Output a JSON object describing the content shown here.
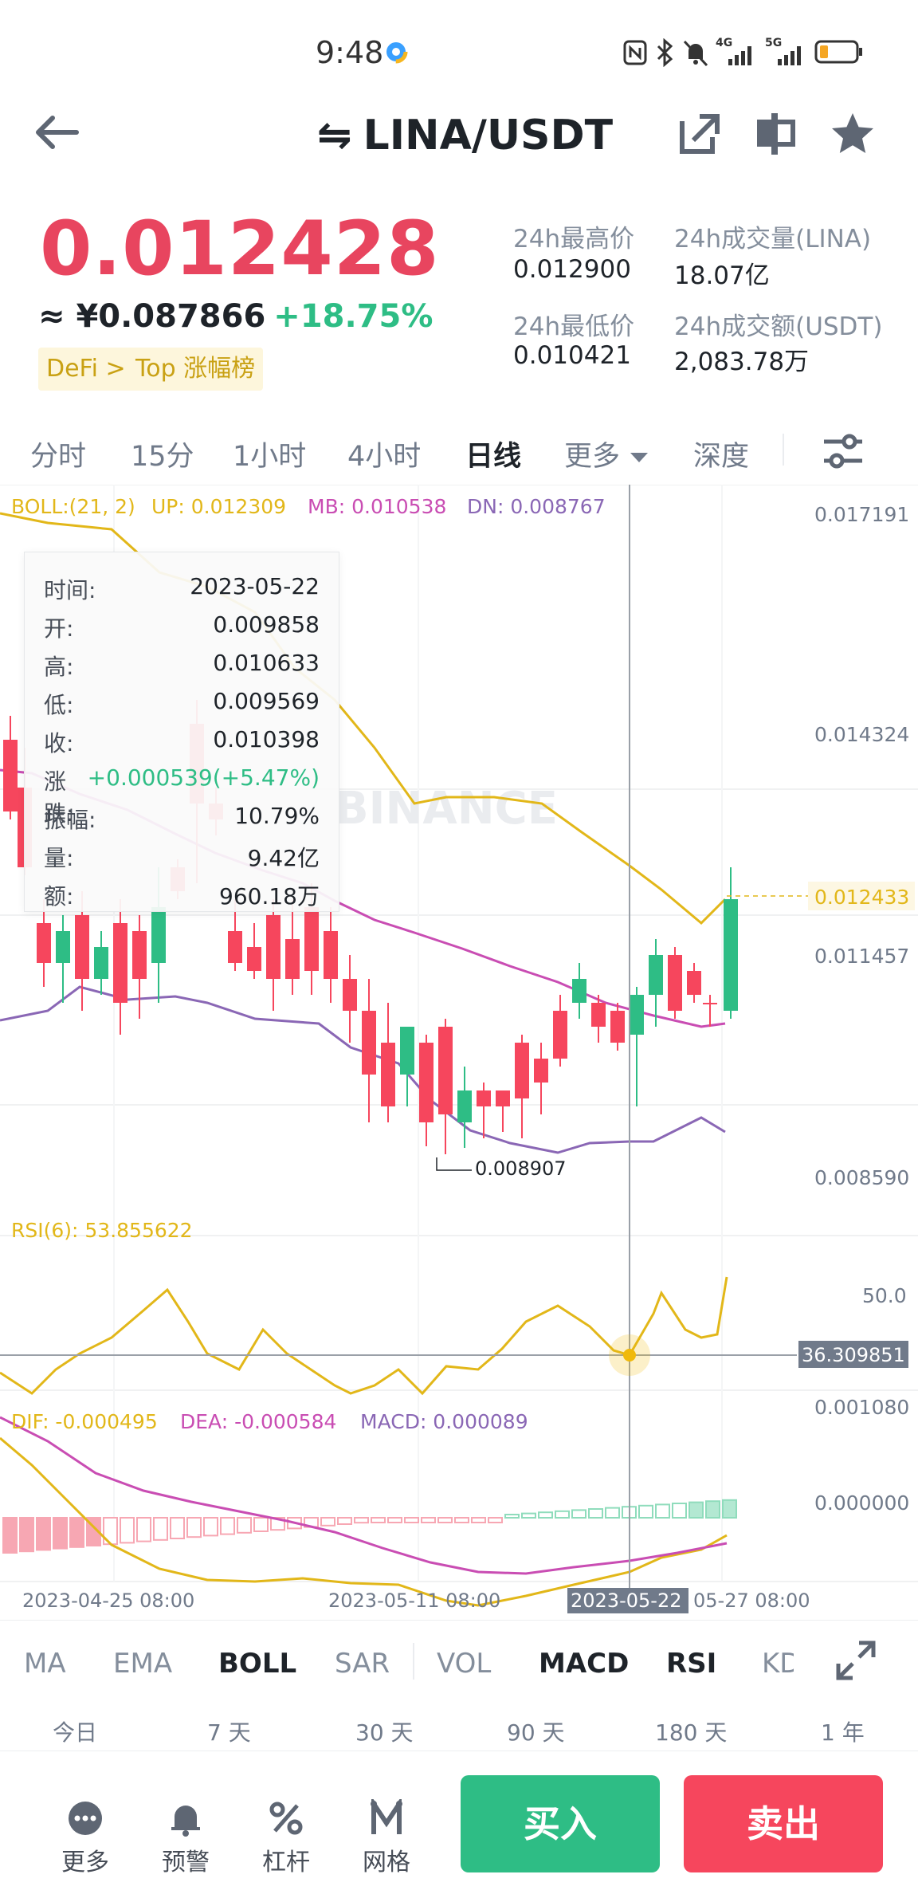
{
  "status_bar": {
    "time": "9:48",
    "icons": [
      "nfc-icon",
      "bluetooth-icon",
      "mute-icon",
      "signal-4g-icon",
      "signal-5g-icon",
      "battery-low-icon"
    ],
    "signal_4g": "4G",
    "signal_5g": "5G"
  },
  "header": {
    "pair": "LINA/USDT",
    "swap_glyph": "⇋"
  },
  "price": {
    "last": "0.012428",
    "cny": "≈ ¥0.087866",
    "change_pct": "+18.75%",
    "tags": [
      "DeFi >",
      "Top 涨幅榜"
    ]
  },
  "stats": {
    "high_label": "24h最高价",
    "high_value": "0.012900",
    "vol_label": "24h成交量(LINA)",
    "vol_value": "18.07亿",
    "low_label": "24h最低价",
    "low_value": "0.010421",
    "amount_label": "24h成交额(USDT)",
    "amount_value": "2,083.78万"
  },
  "intervals": [
    "分时",
    "15分",
    "1小时",
    "4小时",
    "日线",
    "更多",
    "深度"
  ],
  "active_interval": "日线",
  "boll_legend": {
    "name": "BOLL:(21, 2)",
    "up": "UP: 0.012309",
    "mb": "MB: 0.010538",
    "dn": "DN: 0.008767"
  },
  "price_axis": [
    "0.017191",
    "0.014324",
    "0.011457",
    "0.008590"
  ],
  "current_price_label": "0.012433",
  "low_marker": "0.008907",
  "watermark": "BINANCE",
  "rsi": {
    "legend": "RSI(6): 53.855622",
    "axis_label": "50.0",
    "crosshair_value": "36.309851"
  },
  "macd": {
    "dif": "DIF: -0.000495",
    "dea": "DEA: -0.000584",
    "macd": "MACD: 0.000089",
    "axis_top": "0.001080",
    "axis_zero": "0.000000"
  },
  "time_axis": {
    "t1": "2023-04-25 08:00",
    "t2": "2023-05-11 08:00",
    "t3_highlight": "2023-05-22",
    "t4": "05-27 08:00"
  },
  "tooltip": [
    {
      "label": "时间:",
      "value": "2023-05-22"
    },
    {
      "label": "开:",
      "value": "0.009858"
    },
    {
      "label": "高:",
      "value": "0.010633"
    },
    {
      "label": "低:",
      "value": "0.009569"
    },
    {
      "label": "收:",
      "value": "0.010398"
    },
    {
      "label": "涨跌:",
      "value": "+0.000539(+5.47%)"
    },
    {
      "label": "振幅:",
      "value": "10.79%"
    },
    {
      "label": "量:",
      "value": "9.42亿"
    },
    {
      "label": "额:",
      "value": "960.18万"
    }
  ],
  "indicators": [
    "MA",
    "EMA",
    "BOLL",
    "SAR",
    "VOL",
    "MACD",
    "RSI",
    "KD"
  ],
  "active_indicators": [
    "BOLL",
    "MACD",
    "RSI"
  ],
  "ranges": [
    "今日",
    "7 天",
    "30 天",
    "90 天",
    "180 天",
    "1 年"
  ],
  "bottom": {
    "more": "更多",
    "alert": "预警",
    "margin": "杠杆",
    "grid": "网格",
    "buy": "买入",
    "sell": "卖出"
  },
  "colors": {
    "up": "#2ebd85",
    "down": "#f6465d",
    "boll_up": "#e2b719",
    "boll_mb": "#c94db3",
    "boll_dn": "#8a67b5"
  }
}
